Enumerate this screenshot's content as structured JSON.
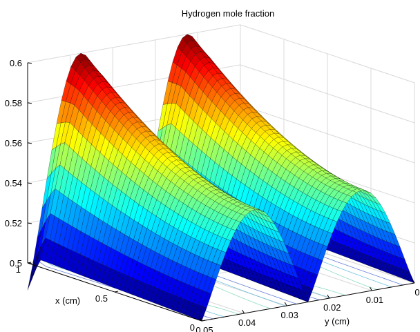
{
  "chart_data": {
    "type": "surface",
    "title": "Hydrogen mole fraction",
    "xlabel": "x (cm)",
    "ylabel": "y (cm)",
    "zlabel": "",
    "xlim": [
      0,
      1
    ],
    "ylim": [
      0,
      0.05
    ],
    "zlim": [
      0.5,
      0.6
    ],
    "x_ticks": [
      "0",
      "0.5",
      "1"
    ],
    "y_ticks": [
      "0",
      "0.01",
      "0.02",
      "0.03",
      "0.04",
      "0.05"
    ],
    "z_ticks": [
      "0.5",
      "0.52",
      "0.54",
      "0.56",
      "0.58",
      "0.6"
    ],
    "grid": true,
    "colormap": "jet",
    "contour_projection": true,
    "surface_description": "Two parallel ridges running along x, with troughs at y = 0.05 and y = 0.025 where the value falls to about 0.50; each ridge crest rises from about 0.55 at x = 0 to about 0.60 at x = 1.",
    "ridges": [
      {
        "y_trough": 0.05,
        "crest_min": 0.551,
        "crest_max": 0.6
      },
      {
        "y_trough": 0.025,
        "crest_min": 0.551,
        "crest_max": 0.6
      }
    ]
  }
}
